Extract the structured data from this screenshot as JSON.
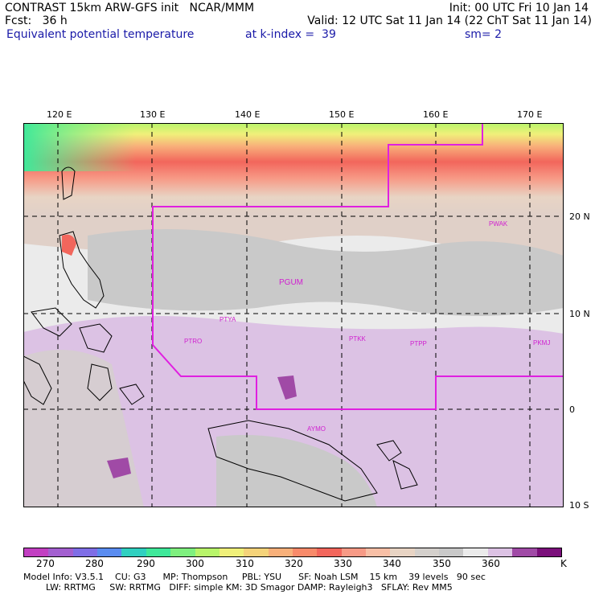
{
  "header": {
    "title_left": "CONTRAST 15km ARW-GFS init   NCAR/MMM",
    "init": "Init: 00 UTC Fri 10 Jan 14",
    "fcst": "Fcst:   36 h",
    "valid": "Valid: 12 UTC Sat 11 Jan 14 (22 ChT Sat 11 Jan 14)",
    "field": "Equivalent potential temperature",
    "level": "at k-index =  39",
    "sm": "sm= 2"
  },
  "axes": {
    "lon_labels": [
      "120 E",
      "130 E",
      "140 E",
      "150 E",
      "160 E",
      "170 E"
    ],
    "lat_labels": [
      "20 N",
      "10 N",
      "0",
      "10 S"
    ]
  },
  "stations": [
    "PWAK",
    "PGUM",
    "PTYA",
    "PTRO",
    "PTKK",
    "PTPP",
    "PKMJ",
    "AYMO"
  ],
  "colorbar": {
    "ticks": [
      "270",
      "280",
      "290",
      "300",
      "310",
      "320",
      "330",
      "340",
      "350",
      "360"
    ],
    "unit": "K",
    "colors": [
      "#c23fc2",
      "#a35fd0",
      "#7f6ee6",
      "#5a8cf0",
      "#30d0c0",
      "#3fe89a",
      "#7ff07f",
      "#b8f56a",
      "#f0f07a",
      "#f5d37a",
      "#f8b07a",
      "#f88a6a",
      "#f2665c",
      "#f79a86",
      "#f8bfa6",
      "#e8d4c4",
      "#d4d0cc",
      "#c9c9c9",
      "#ebebeb",
      "#dcc2e4",
      "#a04aa6",
      "#7b0f7b"
    ]
  },
  "footer": {
    "line1": "Model Info: V3.5.1    CU: G3      MP: Thompson     PBL: YSU      SF: Noah LSM    15 km    39 levels   90 sec",
    "line2": "        LW: RRTMG     SW: RRTMG   DIFF: simple KM: 3D Smagor DAMP: Rayleigh3   SFLAY: Rev MM5"
  },
  "colors": {
    "boundary": "#e020e0",
    "station_label": "#d020d0",
    "grid": "#000000"
  }
}
